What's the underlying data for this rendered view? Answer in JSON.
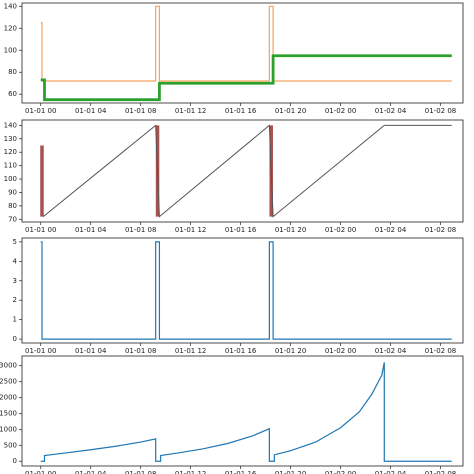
{
  "chart_data": [
    {
      "type": "line",
      "xlim": [
        -1.5,
        33.8
      ],
      "ylim": [
        52,
        143
      ],
      "xticks": [
        {
          "value": 0,
          "label": "01-01 00"
        },
        {
          "value": 4,
          "label": "01-01 04"
        },
        {
          "value": 8,
          "label": "01-01 08"
        },
        {
          "value": 12,
          "label": "01-01 12"
        },
        {
          "value": 16,
          "label": "01-01 16"
        },
        {
          "value": 20,
          "label": "01-01 20"
        },
        {
          "value": 24,
          "label": "01-02 00"
        },
        {
          "value": 28,
          "label": "01-02 04"
        },
        {
          "value": 32,
          "label": "01-02 08"
        }
      ],
      "yticks": [
        60,
        80,
        100,
        120,
        140
      ],
      "series": [
        {
          "color": "#f5a25d",
          "linewidth": 1.2,
          "x": [
            0,
            0.1,
            0.1,
            9.2,
            9.2,
            9.5,
            9.5,
            18.3,
            18.3,
            18.6,
            18.6,
            32.9
          ],
          "values": [
            125,
            125,
            72,
            72,
            140,
            140,
            72,
            72,
            140,
            140,
            72,
            72
          ]
        },
        {
          "color": "#2ca02c",
          "linewidth": 2.8,
          "x": [
            0,
            0.3,
            0.3,
            9.5,
            9.5,
            18.6,
            18.6,
            32.9
          ],
          "values": [
            73,
            73,
            55,
            55,
            70,
            70,
            95,
            95
          ]
        }
      ]
    },
    {
      "type": "line",
      "xlim": [
        -1.5,
        33.8
      ],
      "ylim": [
        68,
        144
      ],
      "xticks": [
        {
          "value": 0,
          "label": "01-01 00"
        },
        {
          "value": 4,
          "label": "01-01 04"
        },
        {
          "value": 8,
          "label": "01-01 08"
        },
        {
          "value": 12,
          "label": "01-01 12"
        },
        {
          "value": 16,
          "label": "01-01 16"
        },
        {
          "value": 20,
          "label": "01-01 20"
        },
        {
          "value": 24,
          "label": "01-02 00"
        },
        {
          "value": 28,
          "label": "01-02 04"
        },
        {
          "value": 32,
          "label": "01-02 08"
        }
      ],
      "yticks": [
        70,
        80,
        90,
        100,
        110,
        120,
        130,
        140
      ],
      "series": [
        {
          "color": "#a8514e",
          "linewidth": 3.5,
          "x": [
            0.1,
            0.1,
            null,
            9.35,
            9.35,
            null,
            18.45,
            18.45
          ],
          "values": [
            72,
            125,
            null,
            72,
            140,
            null,
            72,
            140
          ]
        },
        {
          "color": "#555555",
          "linewidth": 1,
          "x": [
            0.2,
            9.2,
            9.5,
            18.3,
            18.6,
            27.5,
            32.9
          ],
          "values": [
            72,
            140,
            72,
            140,
            72,
            140,
            140
          ]
        }
      ]
    },
    {
      "type": "line",
      "xlim": [
        -1.5,
        33.8
      ],
      "ylim": [
        -0.2,
        5.2
      ],
      "xticks": [
        {
          "value": 0,
          "label": "01-01 00"
        },
        {
          "value": 4,
          "label": "01-01 04"
        },
        {
          "value": 8,
          "label": "01-01 08"
        },
        {
          "value": 12,
          "label": "01-01 12"
        },
        {
          "value": 16,
          "label": "01-01 16"
        },
        {
          "value": 20,
          "label": "01-01 20"
        },
        {
          "value": 24,
          "label": "01-02 00"
        },
        {
          "value": 28,
          "label": "01-02 04"
        },
        {
          "value": 32,
          "label": "01-02 08"
        }
      ],
      "yticks": [
        0,
        1,
        2,
        3,
        4,
        5
      ],
      "series": [
        {
          "color": "#1f77b4",
          "linewidth": 1.2,
          "x": [
            0,
            0.1,
            0.1,
            9.2,
            9.2,
            9.5,
            9.5,
            18.3,
            18.3,
            18.6,
            18.6,
            32.9
          ],
          "values": [
            5,
            5,
            0,
            0,
            5,
            5,
            0,
            0,
            5,
            5,
            0,
            0
          ]
        }
      ]
    },
    {
      "type": "line",
      "xlim": [
        -1.5,
        33.8
      ],
      "ylim": [
        -150,
        3300
      ],
      "xticks": [
        {
          "value": 0,
          "label": "01-01 00"
        },
        {
          "value": 4,
          "label": "01-01 04"
        },
        {
          "value": 8,
          "label": "01-01 08"
        },
        {
          "value": 12,
          "label": "01-01 12"
        },
        {
          "value": 16,
          "label": "01-01 16"
        },
        {
          "value": 20,
          "label": "01-01 20"
        },
        {
          "value": 24,
          "label": "01-02 00"
        },
        {
          "value": 28,
          "label": "01-02 04"
        },
        {
          "value": 32,
          "label": "01-02 08"
        }
      ],
      "yticks": [
        0,
        500,
        1000,
        1500,
        2000,
        2500,
        3000
      ],
      "series": [
        {
          "color": "#1f77b4",
          "linewidth": 1.2,
          "x": [
            0,
            0.3,
            0.3,
            2,
            4,
            6,
            8,
            9.2,
            9.2,
            9.6,
            9.6,
            11,
            13,
            15,
            17,
            18.3,
            18.3,
            18.7,
            18.7,
            20,
            22,
            24,
            25.5,
            26.5,
            27.3,
            27.5,
            27.5,
            32.9
          ],
          "values": [
            0,
            0,
            180,
            260,
            360,
            470,
            600,
            700,
            0,
            0,
            180,
            260,
            390,
            560,
            800,
            1020,
            0,
            0,
            200,
            330,
            600,
            1050,
            1550,
            2100,
            2700,
            3100,
            0,
            0
          ]
        }
      ]
    }
  ]
}
